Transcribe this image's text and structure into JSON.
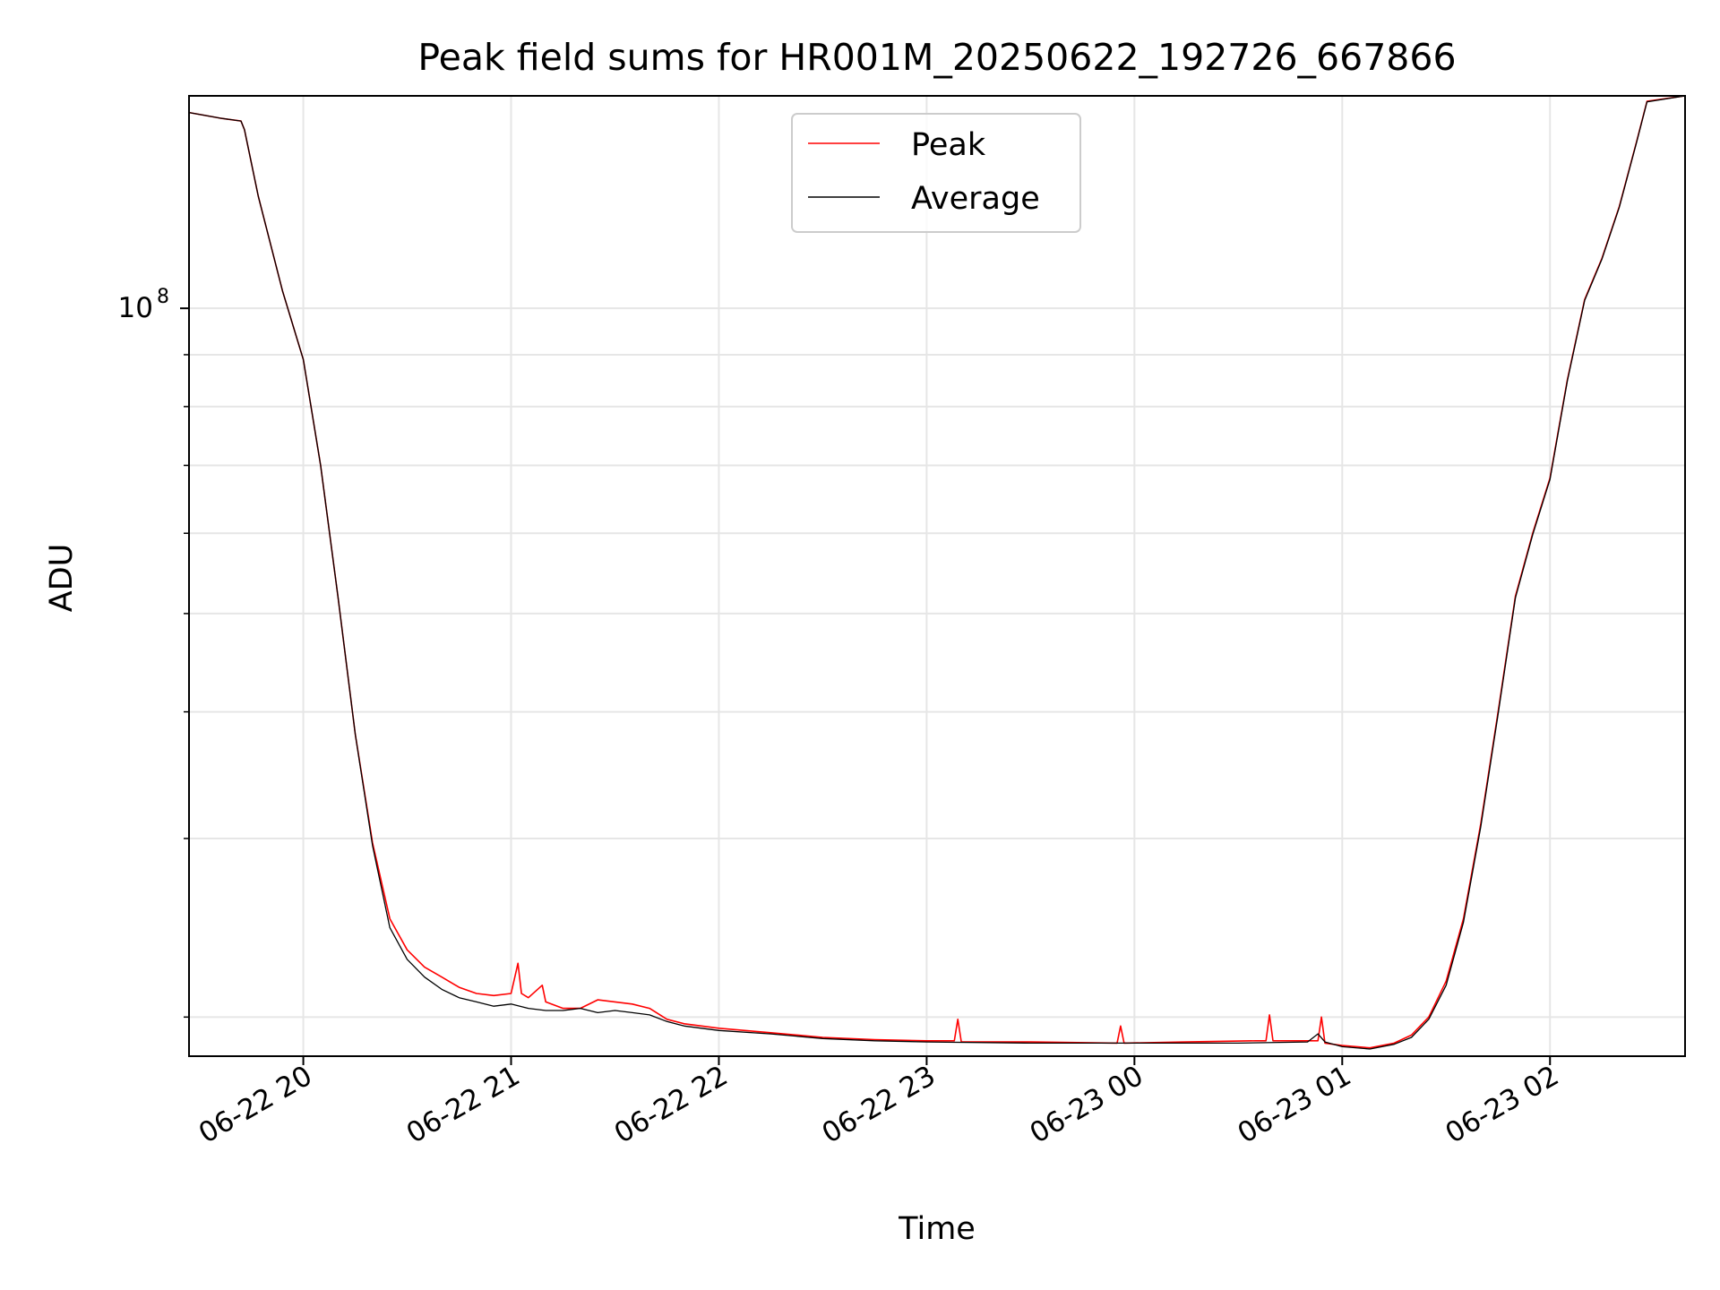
{
  "chart_data": {
    "type": "line",
    "title": "Peak field sums for HR001M_20250622_192726_667866",
    "xlabel": "Time",
    "ylabel": "ADU",
    "yscale": "log",
    "grid": true,
    "legend_position": "upper center",
    "x_range": [
      "2025-06-22 19:27",
      "2025-06-23 02:39"
    ],
    "ylim": [
      18300000,
      162000000
    ],
    "x_ticks": [
      {
        "value": "2025-06-22 20:00",
        "label": "06-22 20"
      },
      {
        "value": "2025-06-22 21:00",
        "label": "06-22 21"
      },
      {
        "value": "2025-06-22 22:00",
        "label": "06-22 22"
      },
      {
        "value": "2025-06-22 23:00",
        "label": "06-22 23"
      },
      {
        "value": "2025-06-23 00:00",
        "label": "06-23 00"
      },
      {
        "value": "2025-06-23 01:00",
        "label": "06-23 01"
      },
      {
        "value": "2025-06-23 02:00",
        "label": "06-23 02"
      }
    ],
    "y_major_ticks": [
      {
        "value": 100000000,
        "base": "10",
        "exponent": "8"
      }
    ],
    "y_minor_ticks": [
      20000000,
      30000000,
      40000000,
      50000000,
      60000000,
      70000000,
      80000000,
      90000000,
      200000000
    ],
    "series": [
      {
        "name": "Peak",
        "color": "#ff0000",
        "x": [
          "2025-06-22 19:27",
          "2025-06-22 19:36",
          "2025-06-22 19:42",
          "2025-06-22 19:43",
          "2025-06-22 19:47",
          "2025-06-22 19:54",
          "2025-06-22 20:00",
          "2025-06-22 20:05",
          "2025-06-22 20:10",
          "2025-06-22 20:15",
          "2025-06-22 20:20",
          "2025-06-22 20:25",
          "2025-06-22 20:30",
          "2025-06-22 20:35",
          "2025-06-22 20:40",
          "2025-06-22 20:45",
          "2025-06-22 20:50",
          "2025-06-22 20:55",
          "2025-06-22 21:00",
          "2025-06-22 21:02",
          "2025-06-22 21:03",
          "2025-06-22 21:05",
          "2025-06-22 21:09",
          "2025-06-22 21:10",
          "2025-06-22 21:15",
          "2025-06-22 21:20",
          "2025-06-22 21:25",
          "2025-06-22 21:30",
          "2025-06-22 21:35",
          "2025-06-22 21:40",
          "2025-06-22 21:45",
          "2025-06-22 21:50",
          "2025-06-22 21:55",
          "2025-06-22 22:00",
          "2025-06-22 22:15",
          "2025-06-22 22:30",
          "2025-06-22 22:45",
          "2025-06-22 23:00",
          "2025-06-22 23:08",
          "2025-06-22 23:09",
          "2025-06-22 23:10",
          "2025-06-22 23:30",
          "2025-06-22 23:55",
          "2025-06-22 23:56",
          "2025-06-22 23:57",
          "2025-06-23 00:15",
          "2025-06-23 00:35",
          "2025-06-23 00:38",
          "2025-06-23 00:39",
          "2025-06-23 00:40",
          "2025-06-23 00:50",
          "2025-06-23 00:53",
          "2025-06-23 00:54",
          "2025-06-23 00:55",
          "2025-06-23 01:00",
          "2025-06-23 01:08",
          "2025-06-23 01:15",
          "2025-06-23 01:20",
          "2025-06-23 01:25",
          "2025-06-23 01:30",
          "2025-06-23 01:35",
          "2025-06-23 01:40",
          "2025-06-23 01:45",
          "2025-06-23 01:50",
          "2025-06-23 01:55",
          "2025-06-23 02:00",
          "2025-06-23 02:05",
          "2025-06-23 02:10",
          "2025-06-23 02:15",
          "2025-06-23 02:20",
          "2025-06-23 02:25",
          "2025-06-23 02:28",
          "2025-06-23 02:39"
        ],
        "values": [
          156000000,
          154000000,
          153000000,
          150000000,
          129000000,
          104000000,
          89000000,
          70000000,
          52000000,
          38000000,
          29700000,
          25000000,
          23300000,
          22400000,
          21900000,
          21400000,
          21100000,
          21000000,
          21100000,
          22600000,
          21100000,
          20900000,
          21500000,
          20700000,
          20400000,
          20400000,
          20800000,
          20700000,
          20600000,
          20400000,
          19900000,
          19700000,
          19600000,
          19500000,
          19300000,
          19100000,
          19000000,
          18950000,
          18950000,
          19900000,
          18900000,
          18900000,
          18850000,
          19600000,
          18850000,
          18900000,
          18950000,
          18950000,
          20100000,
          18950000,
          18950000,
          18950000,
          20000000,
          18850000,
          18750000,
          18650000,
          18850000,
          19200000,
          20000000,
          21700000,
          25000000,
          31000000,
          40000000,
          52000000,
          60000000,
          68000000,
          85000000,
          102000000,
          112000000,
          126000000,
          146000000,
          160000000,
          162000000
        ]
      },
      {
        "name": "Average",
        "color": "#000000",
        "x": [
          "2025-06-22 19:27",
          "2025-06-22 19:36",
          "2025-06-22 19:42",
          "2025-06-22 19:43",
          "2025-06-22 19:47",
          "2025-06-22 19:54",
          "2025-06-22 20:00",
          "2025-06-22 20:05",
          "2025-06-22 20:10",
          "2025-06-22 20:15",
          "2025-06-22 20:20",
          "2025-06-22 20:25",
          "2025-06-22 20:30",
          "2025-06-22 20:35",
          "2025-06-22 20:40",
          "2025-06-22 20:45",
          "2025-06-22 20:50",
          "2025-06-22 20:55",
          "2025-06-22 21:00",
          "2025-06-22 21:05",
          "2025-06-22 21:10",
          "2025-06-22 21:15",
          "2025-06-22 21:20",
          "2025-06-22 21:25",
          "2025-06-22 21:30",
          "2025-06-22 21:35",
          "2025-06-22 21:40",
          "2025-06-22 21:45",
          "2025-06-22 21:50",
          "2025-06-22 21:55",
          "2025-06-22 22:00",
          "2025-06-22 22:15",
          "2025-06-22 22:30",
          "2025-06-22 22:45",
          "2025-06-22 23:00",
          "2025-06-22 23:30",
          "2025-06-23 00:00",
          "2025-06-23 00:30",
          "2025-06-23 00:50",
          "2025-06-23 00:53",
          "2025-06-23 00:55",
          "2025-06-23 01:00",
          "2025-06-23 01:08",
          "2025-06-23 01:15",
          "2025-06-23 01:20",
          "2025-06-23 01:25",
          "2025-06-23 01:30",
          "2025-06-23 01:35",
          "2025-06-23 01:40",
          "2025-06-23 01:45",
          "2025-06-23 01:50",
          "2025-06-23 01:55",
          "2025-06-23 02:00",
          "2025-06-23 02:05",
          "2025-06-23 02:10",
          "2025-06-23 02:15",
          "2025-06-23 02:20",
          "2025-06-23 02:25",
          "2025-06-23 02:28",
          "2025-06-23 02:39"
        ],
        "values": [
          156000000,
          154000000,
          153000000,
          150000000,
          129000000,
          104000000,
          89000000,
          70000000,
          52000000,
          38000000,
          29500000,
          24500000,
          22800000,
          21900000,
          21300000,
          20900000,
          20700000,
          20500000,
          20600000,
          20400000,
          20300000,
          20300000,
          20400000,
          20200000,
          20300000,
          20200000,
          20100000,
          19800000,
          19600000,
          19500000,
          19400000,
          19250000,
          19050000,
          18950000,
          18900000,
          18850000,
          18850000,
          18850000,
          18900000,
          19250000,
          18900000,
          18700000,
          18600000,
          18800000,
          19100000,
          19900000,
          21500000,
          24800000,
          30800000,
          39800000,
          51800000,
          59800000,
          67800000,
          84800000,
          101800000,
          111800000,
          125800000,
          145800000,
          159800000,
          162000000
        ]
      }
    ]
  }
}
